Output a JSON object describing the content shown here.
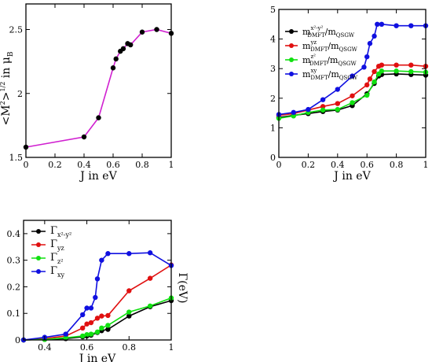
{
  "chart_data": [
    {
      "type": "line",
      "xlabel": "J in eV",
      "ylabel": "<M²>^{1/2} in μ_B",
      "ylabel_parts": {
        "open": "<M",
        "sq": "2",
        "close": ">",
        "sup": "1/2",
        "mid": " in μ",
        "sub": "B"
      },
      "xlim": [
        0,
        1
      ],
      "ylim": [
        1.5,
        2.7
      ],
      "xticks": [
        "0",
        "0.2",
        "0.4",
        "0.6",
        "0.8",
        "1"
      ],
      "yticks": [
        "1.5",
        "2",
        "2.5"
      ],
      "series": [
        {
          "color": "#d020d0",
          "marker_color": "#000000",
          "x": [
            0,
            0.4,
            0.5,
            0.6,
            0.62,
            0.65,
            0.67,
            0.7,
            0.72,
            0.8,
            0.9,
            1.0
          ],
          "y": [
            1.58,
            1.66,
            1.81,
            2.2,
            2.27,
            2.33,
            2.35,
            2.39,
            2.38,
            2.48,
            2.5,
            2.47
          ]
        }
      ]
    },
    {
      "type": "line",
      "xlabel": "J in eV",
      "ylabel": "",
      "xlim": [
        0,
        1
      ],
      "ylim": [
        0,
        5
      ],
      "xticks": [
        "0",
        "0.2",
        "0.4",
        "0.6",
        "0.8",
        "1"
      ],
      "yticks": [
        "0",
        "1",
        "2",
        "3",
        "4",
        "5"
      ],
      "legend_position": "top-left",
      "series": [
        {
          "legend": {
            "m": "m",
            "sup": "x²-y²",
            "sub": "DMFT",
            "tail": "/m",
            "sub2": "QSGW"
          },
          "color": "#000000",
          "x": [
            0,
            0.1,
            0.2,
            0.3,
            0.4,
            0.5,
            0.6,
            0.65,
            0.68,
            0.7,
            0.8,
            0.9,
            1.0
          ],
          "y": [
            1.35,
            1.42,
            1.48,
            1.55,
            1.6,
            1.75,
            2.15,
            2.5,
            2.75,
            2.8,
            2.82,
            2.8,
            2.78
          ]
        },
        {
          "legend": {
            "m": "m",
            "sup": "yz",
            "sub": "DMFT",
            "tail": "/m",
            "sub2": "QSGW"
          },
          "color": "#e01010",
          "x": [
            0,
            0.1,
            0.2,
            0.3,
            0.4,
            0.5,
            0.6,
            0.62,
            0.65,
            0.68,
            0.7,
            0.8,
            0.9,
            1.0
          ],
          "y": [
            1.42,
            1.48,
            1.6,
            1.72,
            1.82,
            2.08,
            2.45,
            2.65,
            2.9,
            3.08,
            3.12,
            3.12,
            3.12,
            3.08
          ]
        },
        {
          "legend": {
            "m": "m",
            "sup": "z²",
            "sub": "DMFT",
            "tail": "/m",
            "sub2": "QSGW"
          },
          "color": "#10e010",
          "x": [
            0,
            0.1,
            0.2,
            0.3,
            0.4,
            0.5,
            0.6,
            0.65,
            0.68,
            0.7,
            0.8,
            0.9,
            1.0
          ],
          "y": [
            1.32,
            1.4,
            1.52,
            1.6,
            1.62,
            1.85,
            2.1,
            2.55,
            2.82,
            2.92,
            2.92,
            2.9,
            2.88
          ]
        },
        {
          "legend": {
            "m": "m",
            "sup": "xy",
            "sub": "DMFT",
            "tail": "/m",
            "sub2": "QSGW"
          },
          "color": "#1010e0",
          "x": [
            0,
            0.1,
            0.2,
            0.3,
            0.4,
            0.5,
            0.58,
            0.6,
            0.62,
            0.65,
            0.67,
            0.7,
            0.8,
            0.9,
            1.0
          ],
          "y": [
            1.45,
            1.52,
            1.62,
            1.95,
            2.3,
            2.75,
            3.05,
            3.4,
            3.85,
            4.1,
            4.5,
            4.5,
            4.45,
            4.45,
            4.45
          ]
        }
      ]
    },
    {
      "type": "line",
      "xlabel": "J in eV",
      "ylabel": "Γ(eV)",
      "ylabel_position": "right",
      "xlim": [
        0.3,
        1
      ],
      "ylim": [
        0,
        0.45
      ],
      "xticks": [
        "0.4",
        "0.6",
        "0.8",
        "1"
      ],
      "yticks": [
        "0",
        "0.1",
        "0.2",
        "0.3",
        "0.4"
      ],
      "legend_position": "top-left",
      "series": [
        {
          "legend": {
            "sym": "Γ",
            "sub": "x²-y²"
          },
          "color": "#000000",
          "x": [
            0.3,
            0.4,
            0.5,
            0.58,
            0.6,
            0.62,
            0.65,
            0.67,
            0.7,
            0.8,
            0.9,
            1.0
          ],
          "y": [
            0.0,
            0.002,
            0.005,
            0.012,
            0.015,
            0.018,
            0.028,
            0.035,
            0.04,
            0.09,
            0.125,
            0.148
          ]
        },
        {
          "legend": {
            "sym": "Γ",
            "sub": "yz"
          },
          "color": "#e01010",
          "x": [
            0.3,
            0.4,
            0.5,
            0.58,
            0.6,
            0.62,
            0.65,
            0.67,
            0.7,
            0.8,
            0.9,
            1.0
          ],
          "y": [
            0.0,
            0.005,
            0.015,
            0.045,
            0.06,
            0.065,
            0.082,
            0.09,
            0.092,
            0.185,
            0.232,
            0.282
          ]
        },
        {
          "legend": {
            "sym": "Γ",
            "sub": "z²"
          },
          "color": "#10e010",
          "x": [
            0.3,
            0.4,
            0.5,
            0.58,
            0.6,
            0.62,
            0.65,
            0.67,
            0.7,
            0.8,
            0.9,
            1.0
          ],
          "y": [
            0.0,
            0.002,
            0.008,
            0.015,
            0.02,
            0.022,
            0.03,
            0.045,
            0.055,
            0.105,
            0.128,
            0.158
          ]
        },
        {
          "legend": {
            "sym": "Γ",
            "sub": "xy"
          },
          "color": "#1010e0",
          "x": [
            0.3,
            0.4,
            0.5,
            0.58,
            0.6,
            0.62,
            0.64,
            0.65,
            0.67,
            0.7,
            0.8,
            0.9,
            1.0
          ],
          "y": [
            0.0,
            0.01,
            0.022,
            0.095,
            0.12,
            0.12,
            0.16,
            0.23,
            0.3,
            0.325,
            0.325,
            0.328,
            0.28
          ]
        }
      ]
    }
  ]
}
